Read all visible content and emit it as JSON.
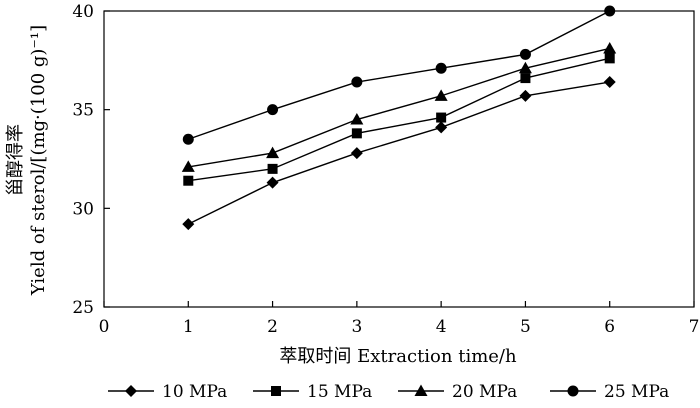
{
  "chart_data": {
    "type": "line",
    "x": [
      1,
      2,
      3,
      4,
      5,
      6
    ],
    "xlim": [
      0,
      7
    ],
    "ylim": [
      25,
      40
    ],
    "xticks": [
      "0",
      "1",
      "2",
      "3",
      "4",
      "5",
      "6",
      "7"
    ],
    "yticks": [
      "25",
      "30",
      "35",
      "40"
    ],
    "xlabel": "萃取时间 Extraction time/h",
    "ylabel_cn": "甾醇得率",
    "ylabel_en": "Yield of sterol/[(mg·(100 g)⁻¹]",
    "series": [
      {
        "name": "10 MPa",
        "marker": "diamond",
        "values": [
          29.2,
          31.3,
          32.8,
          34.1,
          35.7,
          36.4
        ]
      },
      {
        "name": "15 MPa",
        "marker": "square",
        "values": [
          31.4,
          32.0,
          33.8,
          34.6,
          36.6,
          37.6
        ]
      },
      {
        "name": "20 MPa",
        "marker": "triangle",
        "values": [
          32.1,
          32.8,
          34.5,
          35.7,
          37.1,
          38.1
        ]
      },
      {
        "name": "25 MPa",
        "marker": "circle",
        "values": [
          33.5,
          35.0,
          36.4,
          37.1,
          37.8,
          40.0
        ]
      }
    ]
  }
}
